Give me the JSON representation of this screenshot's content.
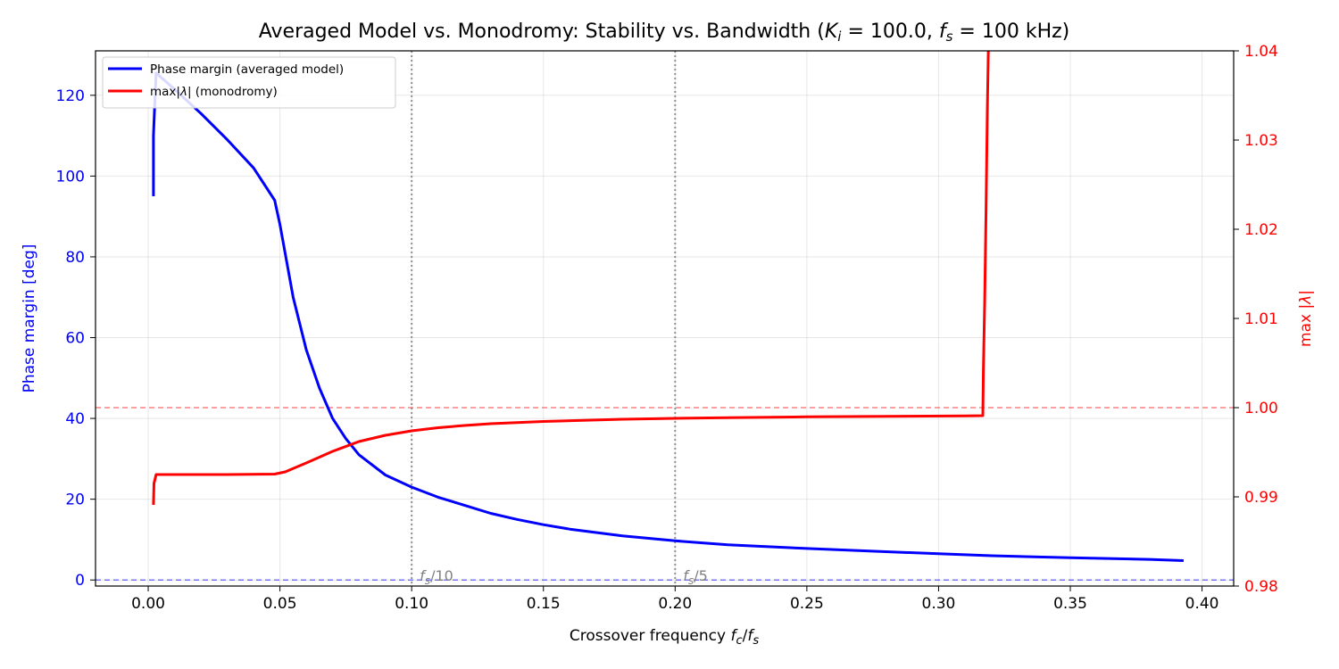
{
  "chart_data": {
    "type": "line",
    "title_prefix": "Averaged Model vs. Monodromy: Stability vs. Bandwidth",
    "title_math": "(K_i = 100.0, f_s = 100 kHz)",
    "xlabel": "Crossover frequency f_c/f_s",
    "ylabel_left": "Phase margin [deg]",
    "ylabel_right": "max |λ|",
    "xlim": [
      -0.02,
      0.412
    ],
    "ylim_left": [
      -1.5,
      131
    ],
    "ylim_right": [
      0.98,
      1.04
    ],
    "x_ticks": [
      "0.00",
      "0.05",
      "0.10",
      "0.15",
      "0.20",
      "0.25",
      "0.30",
      "0.35",
      "0.40"
    ],
    "y_ticks_left": [
      "0",
      "20",
      "40",
      "60",
      "80",
      "100",
      "120"
    ],
    "y_ticks_right": [
      "0.98",
      "0.99",
      "1.00",
      "1.01",
      "1.02",
      "1.03",
      "1.04"
    ],
    "grid": true,
    "legend_position": "top-left",
    "legend": [
      "Phase margin (averaged model)",
      "max|λ| (monodromy)"
    ],
    "reference_lines": [
      {
        "axis": "left",
        "y": 0,
        "color": "#0000ff",
        "style": "dashed"
      },
      {
        "axis": "right",
        "y": 1.0,
        "color": "#ff0000",
        "style": "dashed"
      },
      {
        "axis": "x",
        "x": 0.1,
        "label": "f_s/10",
        "color": "#808080",
        "style": "dotted"
      },
      {
        "axis": "x",
        "x": 0.2,
        "label": "f_s/5",
        "color": "#808080",
        "style": "dotted"
      }
    ],
    "series": [
      {
        "name": "Phase margin (averaged model)",
        "axis": "left",
        "color": "#0000ff",
        "points": [
          [
            0.002,
            95
          ],
          [
            0.002,
            110
          ],
          [
            0.0025,
            118
          ],
          [
            0.003,
            125.5
          ],
          [
            0.01,
            121.5
          ],
          [
            0.02,
            115.5
          ],
          [
            0.03,
            109
          ],
          [
            0.04,
            102
          ],
          [
            0.048,
            94
          ],
          [
            0.05,
            88
          ],
          [
            0.055,
            70
          ],
          [
            0.06,
            57
          ],
          [
            0.065,
            47.5
          ],
          [
            0.07,
            40
          ],
          [
            0.075,
            35
          ],
          [
            0.08,
            31
          ],
          [
            0.09,
            26
          ],
          [
            0.1,
            23
          ],
          [
            0.11,
            20.5
          ],
          [
            0.12,
            18.5
          ],
          [
            0.13,
            16.5
          ],
          [
            0.14,
            15
          ],
          [
            0.15,
            13.7
          ],
          [
            0.16,
            12.6
          ],
          [
            0.18,
            10.9
          ],
          [
            0.2,
            9.7
          ],
          [
            0.22,
            8.7
          ],
          [
            0.25,
            7.8
          ],
          [
            0.28,
            7
          ],
          [
            0.3,
            6.5
          ],
          [
            0.32,
            6
          ],
          [
            0.35,
            5.5
          ],
          [
            0.38,
            5.1
          ],
          [
            0.393,
            4.8
          ]
        ]
      },
      {
        "name": "max|λ| (monodromy)",
        "axis": "right",
        "color": "#ff0000",
        "points": [
          [
            0.002,
            0.9891
          ],
          [
            0.0022,
            0.9915
          ],
          [
            0.003,
            0.9925
          ],
          [
            0.01,
            0.9925
          ],
          [
            0.03,
            0.9925
          ],
          [
            0.048,
            0.99255
          ],
          [
            0.052,
            0.9928
          ],
          [
            0.06,
            0.9938
          ],
          [
            0.07,
            0.9951
          ],
          [
            0.08,
            0.9962
          ],
          [
            0.09,
            0.9969
          ],
          [
            0.1,
            0.9974
          ],
          [
            0.11,
            0.99775
          ],
          [
            0.12,
            0.998
          ],
          [
            0.13,
            0.9982
          ],
          [
            0.15,
            0.99845
          ],
          [
            0.18,
            0.9987
          ],
          [
            0.2,
            0.9988
          ],
          [
            0.22,
            0.99888
          ],
          [
            0.25,
            0.99897
          ],
          [
            0.28,
            0.99903
          ],
          [
            0.31,
            0.99907
          ],
          [
            0.3168,
            0.9991
          ],
          [
            0.317,
            1.004
          ],
          [
            0.3175,
            1.012
          ],
          [
            0.318,
            1.022
          ],
          [
            0.3185,
            1.033
          ],
          [
            0.319,
            1.042
          ]
        ]
      }
    ]
  }
}
